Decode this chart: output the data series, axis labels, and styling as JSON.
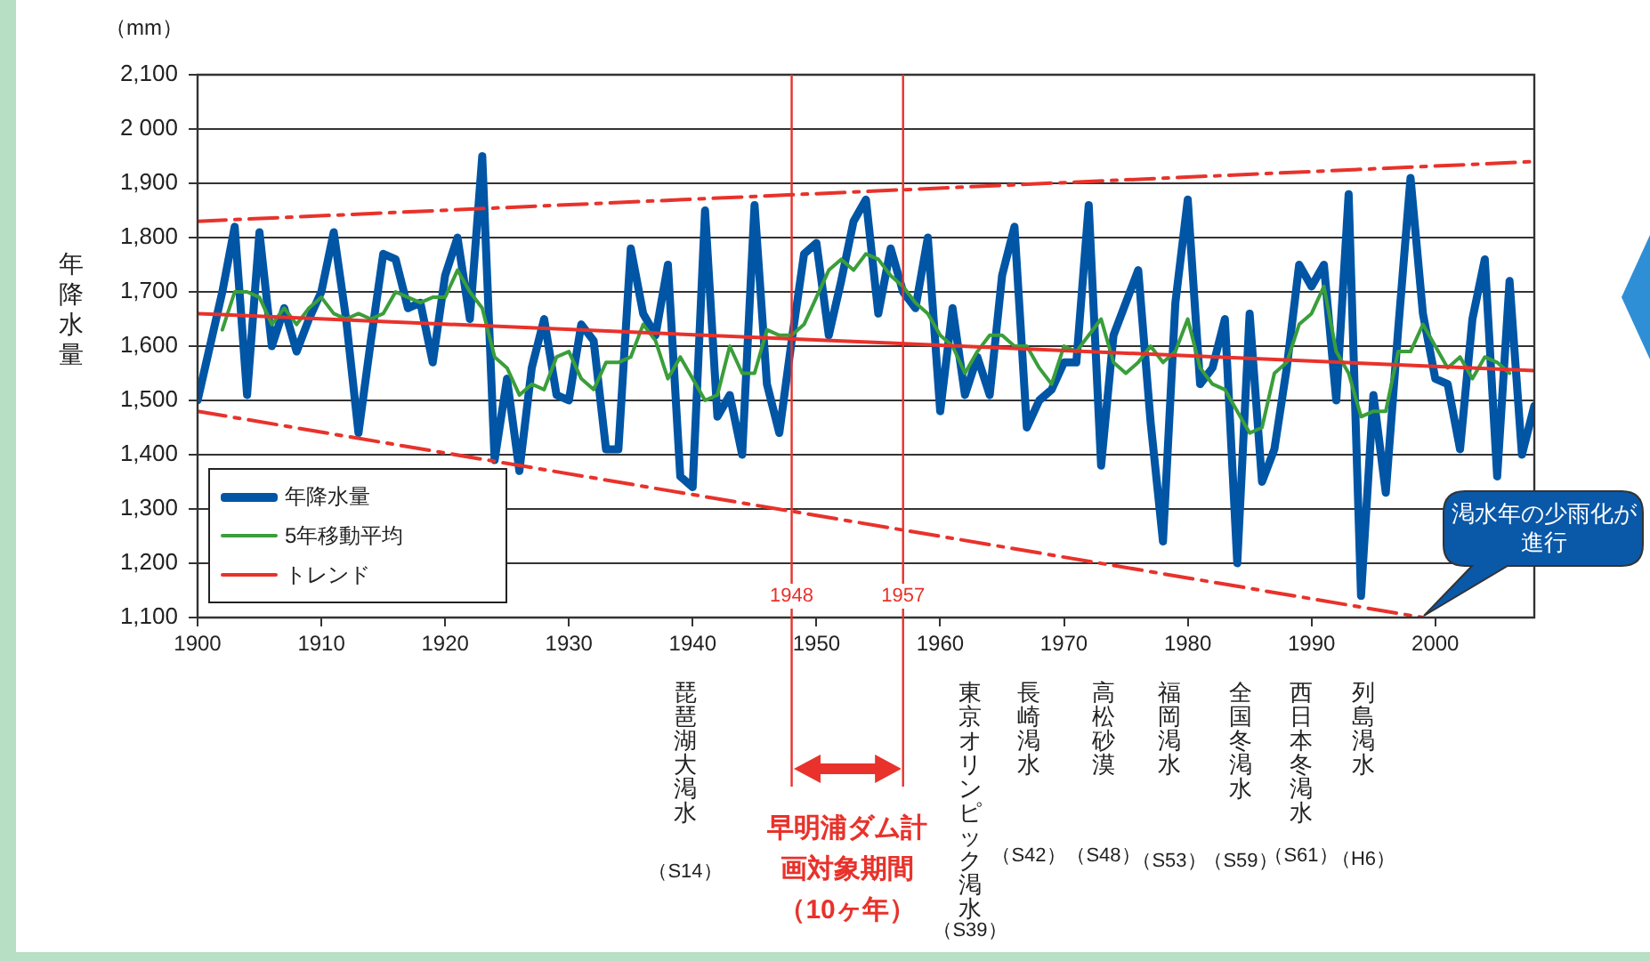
{
  "chart_data": {
    "type": "line",
    "ylabel": "年降水量",
    "x": [
      1900,
      1901,
      1902,
      1903,
      1904,
      1905,
      1906,
      1907,
      1908,
      1909,
      1910,
      1911,
      1912,
      1913,
      1914,
      1915,
      1916,
      1917,
      1918,
      1919,
      1920,
      1921,
      1922,
      1923,
      1924,
      1925,
      1926,
      1927,
      1928,
      1929,
      1930,
      1931,
      1932,
      1933,
      1934,
      1935,
      1936,
      1937,
      1938,
      1939,
      1940,
      1941,
      1942,
      1943,
      1944,
      1945,
      1946,
      1947,
      1948,
      1949,
      1950,
      1951,
      1952,
      1953,
      1954,
      1955,
      1956,
      1957,
      1958,
      1959,
      1960,
      1961,
      1962,
      1963,
      1964,
      1965,
      1966,
      1967,
      1968,
      1969,
      1970,
      1971,
      1972,
      1973,
      1974,
      1975,
      1976,
      1977,
      1978,
      1979,
      1980,
      1981,
      1982,
      1983,
      1984,
      1985,
      1986,
      1987,
      1988,
      1989,
      1990,
      1991,
      1992,
      1993,
      1994,
      1995,
      1996,
      1997,
      1998,
      1999,
      2000,
      2001,
      2002,
      2003,
      2004,
      2005,
      2006,
      2007,
      2008
    ],
    "series": [
      {
        "name": "年降水量",
        "color": "#0055a5",
        "values": [
          1500,
          1600,
          1700,
          1820,
          1510,
          1810,
          1600,
          1670,
          1590,
          1650,
          1700,
          1810,
          1650,
          1440,
          1610,
          1770,
          1760,
          1670,
          1680,
          1570,
          1730,
          1800,
          1650,
          1950,
          1390,
          1540,
          1370,
          1560,
          1650,
          1510,
          1500,
          1640,
          1610,
          1410,
          1410,
          1780,
          1660,
          1620,
          1750,
          1360,
          1340,
          1850,
          1470,
          1510,
          1400,
          1860,
          1530,
          1440,
          1610,
          1770,
          1790,
          1620,
          1720,
          1830,
          1870,
          1660,
          1780,
          1700,
          1670,
          1800,
          1480,
          1670,
          1510,
          1580,
          1510,
          1730,
          1820,
          1450,
          1500,
          1520,
          1570,
          1570,
          1860,
          1380,
          1620,
          1680,
          1740,
          1460,
          1240,
          1680,
          1870,
          1530,
          1560,
          1650,
          1200,
          1660,
          1350,
          1410,
          1560,
          1750,
          1710,
          1750,
          1500,
          1880,
          1140,
          1510,
          1330,
          1630,
          1910,
          1660,
          1540,
          1530,
          1410,
          1650,
          1760,
          1360,
          1720,
          1400,
          1490
        ]
      },
      {
        "name": "5年移動平均",
        "color": "#3a9e3a",
        "x": [
          1902,
          1903,
          1904,
          1905,
          1906,
          1907,
          1908,
          1909,
          1910,
          1911,
          1912,
          1913,
          1914,
          1915,
          1916,
          1917,
          1918,
          1919,
          1920,
          1921,
          1922,
          1923,
          1924,
          1925,
          1926,
          1927,
          1928,
          1929,
          1930,
          1931,
          1932,
          1933,
          1934,
          1935,
          1936,
          1937,
          1938,
          1939,
          1940,
          1941,
          1942,
          1943,
          1944,
          1945,
          1946,
          1947,
          1948,
          1949,
          1950,
          1951,
          1952,
          1953,
          1954,
          1955,
          1956,
          1957,
          1958,
          1959,
          1960,
          1961,
          1962,
          1963,
          1964,
          1965,
          1966,
          1967,
          1968,
          1969,
          1970,
          1971,
          1972,
          1973,
          1974,
          1975,
          1976,
          1977,
          1978,
          1979,
          1980,
          1981,
          1982,
          1983,
          1984,
          1985,
          1986,
          1987,
          1988,
          1989,
          1990,
          1991,
          1992,
          1993,
          1994,
          1995,
          1996,
          1997,
          1998,
          1999,
          2000,
          2001,
          2002,
          2003,
          2004,
          2005,
          2006
        ],
        "values": [
          1630,
          1700,
          1700,
          1690,
          1640,
          1670,
          1640,
          1670,
          1690,
          1660,
          1650,
          1660,
          1650,
          1660,
          1700,
          1690,
          1680,
          1690,
          1690,
          1740,
          1700,
          1670,
          1580,
          1560,
          1510,
          1530,
          1520,
          1580,
          1590,
          1540,
          1520,
          1570,
          1570,
          1580,
          1640,
          1610,
          1540,
          1580,
          1540,
          1500,
          1510,
          1600,
          1550,
          1550,
          1630,
          1620,
          1620,
          1640,
          1690,
          1740,
          1760,
          1740,
          1770,
          1760,
          1730,
          1710,
          1680,
          1660,
          1620,
          1600,
          1550,
          1590,
          1620,
          1620,
          1600,
          1600,
          1560,
          1530,
          1600,
          1590,
          1620,
          1650,
          1570,
          1550,
          1570,
          1600,
          1570,
          1590,
          1650,
          1560,
          1530,
          1520,
          1480,
          1440,
          1450,
          1550,
          1570,
          1640,
          1660,
          1710,
          1590,
          1550,
          1470,
          1480,
          1480,
          1590,
          1590,
          1640,
          1600,
          1560,
          1580,
          1540,
          1580,
          1570,
          1550
        ]
      },
      {
        "name": "トレンド",
        "color": "#e8322b",
        "x": [
          1900,
          2008
        ],
        "values": [
          1660,
          1555
        ]
      },
      {
        "color": "#e8322b",
        "line_style": "dashed",
        "x": [
          1900,
          2008
        ],
        "values": [
          1830,
          1940
        ]
      },
      {
        "color": "#e8322b",
        "line_style": "dashed",
        "x": [
          1900,
          1999
        ],
        "values": [
          1480,
          1100
        ]
      }
    ],
    "xlim": [
      1900,
      2008
    ],
    "xticks": [
      1900,
      1910,
      1920,
      1930,
      1940,
      1950,
      1960,
      1970,
      1980,
      1990,
      2000
    ],
    "ylim": [
      1100,
      2100
    ],
    "yticks": [
      {
        "value": 1100,
        "label": "1,100"
      },
      {
        "value": 1200,
        "label": "1,200"
      },
      {
        "value": 1300,
        "label": "1,300"
      },
      {
        "value": 1400,
        "label": "1,400"
      },
      {
        "value": 1500,
        "label": "1,500"
      },
      {
        "value": 1600,
        "label": "1,600"
      },
      {
        "value": 1700,
        "label": "1,700"
      },
      {
        "value": 1800,
        "label": "1,800"
      },
      {
        "value": 1900,
        "label": "1,900"
      },
      {
        "value": 2000,
        "label": "2 000"
      },
      {
        "value": 2100,
        "label": "2,100"
      }
    ],
    "grid": "y",
    "legend": "bottom left",
    "marker": "none",
    "ref_lines": [
      {
        "axis": "x",
        "value": 1948,
        "label": "1948",
        "color": "#e8322b"
      },
      {
        "axis": "x",
        "value": 1957,
        "label": "1957",
        "color": "#e8322b"
      }
    ],
    "annotations": [
      "（mm）",
      "琵琶湖大渇水",
      "（S14）",
      "東京オリンピック渇水",
      "（S39）",
      "長崎渇水",
      "（S42）",
      "高松砂漠",
      "（S48）",
      "福岡渇水",
      "（S53）",
      "全国冬渇水",
      "（S59）",
      "西日本冬渇水",
      "（S61）",
      "列島渇水",
      "（H6）",
      "早明浦ダム計画対象期間（10ヶ年）",
      {
        "text": "渇水年の少雨化が進行",
        "x": 1999,
        "y": 1100
      }
    ]
  }
}
